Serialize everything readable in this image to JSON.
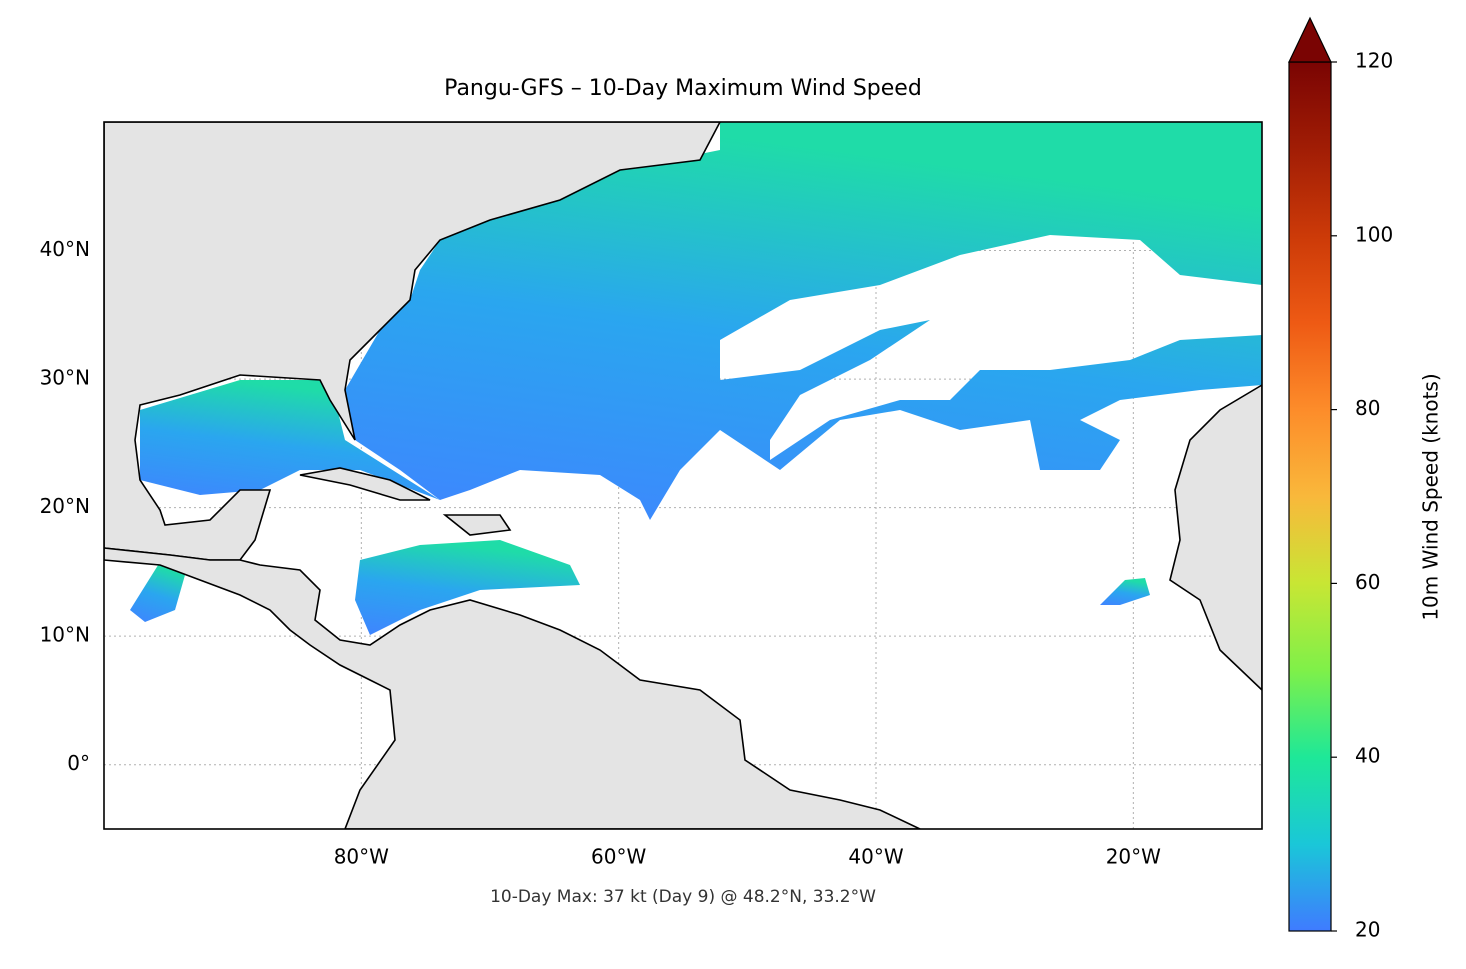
{
  "chart_data": {
    "type": "map",
    "title": "Pangu-GFS – 10-Day Maximum Wind Speed",
    "annotation": "10-Day Max: 37 kt (Day 9) @ 48.2°N, 33.2°W",
    "xlim": [
      -100,
      -10
    ],
    "ylim": [
      -5,
      50
    ],
    "xticks": [
      {
        "value": -80,
        "label": "80°W"
      },
      {
        "value": -60,
        "label": "60°W"
      },
      {
        "value": -40,
        "label": "40°W"
      },
      {
        "value": -20,
        "label": "20°W"
      }
    ],
    "yticks": [
      {
        "value": 0,
        "label": "0°"
      },
      {
        "value": 10,
        "label": "10°N"
      },
      {
        "value": 20,
        "label": "20°N"
      },
      {
        "value": 30,
        "label": "30°N"
      },
      {
        "value": 40,
        "label": "40°N"
      }
    ],
    "grid": true,
    "colorbar": {
      "label": "10m Wind Speed (knots)",
      "clim": [
        20,
        120
      ],
      "ticks": [
        20,
        40,
        60,
        80,
        100,
        120
      ],
      "extend": "max",
      "colors": [
        {
          "value": 20,
          "color": "#3f7bff"
        },
        {
          "value": 30,
          "color": "#1ac7d8"
        },
        {
          "value": 40,
          "color": "#1ee898"
        },
        {
          "value": 50,
          "color": "#7ff049"
        },
        {
          "value": 60,
          "color": "#c8e634"
        },
        {
          "value": 70,
          "color": "#f9b83b"
        },
        {
          "value": 80,
          "color": "#fd8c2a"
        },
        {
          "value": 90,
          "color": "#ee5a14"
        },
        {
          "value": 100,
          "color": "#cc3a08"
        },
        {
          "value": 110,
          "color": "#a11d05"
        },
        {
          "value": 120,
          "color": "#7a0403"
        }
      ]
    }
  }
}
